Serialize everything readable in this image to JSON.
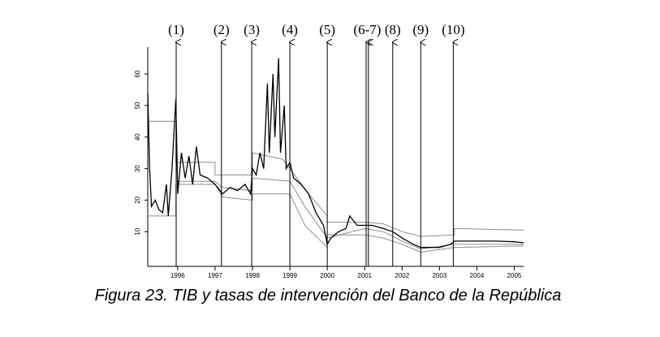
{
  "chart_data": {
    "type": "line",
    "caption": "Figura 23. TIB y tasas de intervención del Banco de la República",
    "xlim": [
      1995.2,
      2005.25
    ],
    "ylim": [
      -1,
      67.5
    ],
    "xticks": [
      1996,
      1997,
      1998,
      1999,
      2000,
      2001,
      2002,
      2003,
      2004,
      2005
    ],
    "yticks": [
      10,
      20,
      30,
      40,
      50,
      60
    ],
    "events": [
      {
        "label": "(1)",
        "x": [
          1995.96
        ]
      },
      {
        "label": "(2)",
        "x": [
          1997.17
        ]
      },
      {
        "label": "(3)",
        "x": [
          1997.98
        ]
      },
      {
        "label": "(4)",
        "x": [
          1999.0
        ]
      },
      {
        "label": "(5)",
        "x": [
          2000.0
        ]
      },
      {
        "label": "(6-7)",
        "x": [
          2001.04,
          2001.1
        ]
      },
      {
        "label": "(8)",
        "x": [
          2001.75
        ]
      },
      {
        "label": "(9)",
        "x": [
          2002.5
        ]
      },
      {
        "label": "(10)",
        "x": [
          2003.37
        ]
      }
    ],
    "series": [
      {
        "color": "#8c8c8c",
        "x": [
          1995.2,
          1995.95,
          1995.95,
          1997.0,
          1997.0,
          1998.0,
          1998.0,
          1998.8,
          1999.0,
          1999.5,
          2000.0,
          2000.0,
          2001.0,
          2001.5,
          2002.0,
          2002.5,
          2003.4,
          2003.4,
          2005.25
        ],
        "values": [
          45,
          45,
          32,
          32,
          28,
          28,
          35,
          33,
          30,
          22,
          15,
          13,
          13,
          12.5,
          10,
          8.5,
          9,
          11,
          10.5
        ]
      },
      {
        "color": "#8c8c8c",
        "x": [
          1995.2,
          1995.95,
          1995.95,
          1997.0,
          1997.2,
          1998.0,
          1998.0,
          1999.0,
          1999.4,
          2000.0,
          2000.0,
          2001.0,
          2001.5,
          2002.0,
          2002.5,
          2003.4,
          2005.25
        ],
        "values": [
          15,
          15,
          25,
          25,
          21,
          20,
          22,
          22,
          12,
          5,
          9,
          9,
          8,
          6,
          3.5,
          5,
          5.5
        ]
      },
      {
        "color": "#8c8c8c",
        "x": [
          1995.95,
          1997.0,
          1997.2,
          1998.0,
          1998.0,
          1999.0,
          1999.4,
          2000.0,
          2001.0,
          2001.5,
          2002.0,
          2002.5,
          2003.4,
          2005.25
        ],
        "values": [
          26,
          26,
          24,
          23,
          27,
          26,
          18,
          8,
          11,
          10,
          7,
          4.5,
          6,
          6
        ]
      },
      {
        "color": "#000000",
        "x": [
          1995.2,
          1995.25,
          1995.3,
          1995.4,
          1995.5,
          1995.6,
          1995.7,
          1995.75,
          1995.85,
          1995.95,
          1996.0,
          1996.1,
          1996.2,
          1996.3,
          1996.4,
          1996.5,
          1996.6,
          1996.8,
          1997.0,
          1997.2,
          1997.4,
          1997.6,
          1997.8,
          1997.95,
          1998.0,
          1998.1,
          1998.2,
          1998.3,
          1998.4,
          1998.45,
          1998.55,
          1998.6,
          1998.7,
          1998.75,
          1998.85,
          1998.9,
          1999.0,
          1999.1,
          1999.3,
          1999.5,
          1999.7,
          1999.9,
          2000.0,
          2000.1,
          2000.3,
          2000.5,
          2000.6,
          2000.8,
          2001.0,
          2001.2,
          2001.5,
          2001.75,
          2002.0,
          2002.3,
          2002.5,
          2002.8,
          2003.0,
          2003.3,
          2003.4,
          2004.0,
          2004.5,
          2005.0,
          2005.25
        ],
        "values": [
          54,
          30,
          18,
          20,
          17,
          16,
          25,
          15,
          30,
          52,
          22,
          35,
          27,
          34,
          25,
          37,
          28,
          27,
          25,
          22,
          24,
          23,
          25,
          22,
          30,
          28,
          35,
          30,
          57,
          35,
          60,
          40,
          65,
          35,
          50,
          30,
          32,
          27,
          25,
          22,
          16,
          12,
          6,
          8,
          10,
          11,
          15,
          12,
          12,
          12,
          11,
          10,
          8,
          6,
          5,
          5,
          5,
          6,
          7,
          7,
          7,
          6.8,
          6.5
        ]
      }
    ]
  }
}
